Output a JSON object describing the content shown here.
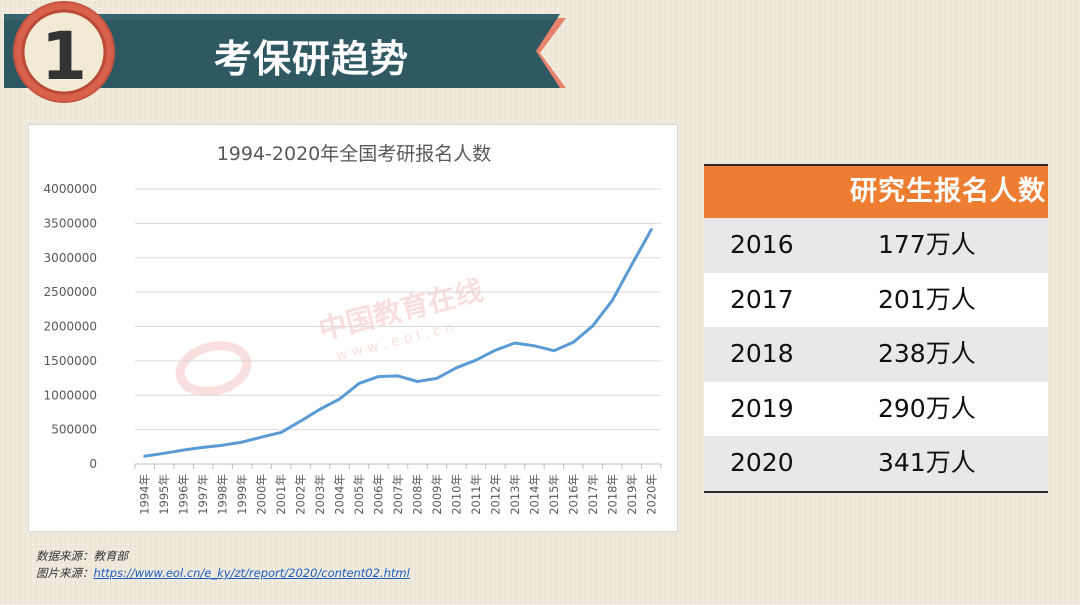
{
  "banner": {
    "number": "1",
    "title": "考保研趋势"
  },
  "chart_data": {
    "type": "line",
    "title": "1994-2020年全国考研报名人数",
    "categories": [
      "1994年",
      "1995年",
      "1996年",
      "1997年",
      "1998年",
      "1999年",
      "2000年",
      "2001年",
      "2002年",
      "2003年",
      "2004年",
      "2005年",
      "2006年",
      "2007年",
      "2008年",
      "2009年",
      "2010年",
      "2011年",
      "2012年",
      "2013年",
      "2014年",
      "2015年",
      "2016年",
      "2017年",
      "2018年",
      "2019年",
      "2020年"
    ],
    "series": [
      {
        "values": [
          113000,
          155000,
          204000,
          242000,
          274000,
          319000,
          392000,
          460000,
          624000,
          797000,
          945000,
          1172000,
          1272000,
          1282000,
          1200000,
          1246000,
          1400000,
          1510000,
          1656000,
          1760000,
          1720000,
          1648000,
          1770000,
          2010000,
          2380000,
          2900000,
          3410000
        ],
        "color": "#5b9bd5"
      }
    ],
    "ylim": [
      0,
      4000000
    ],
    "yticks": [
      "0",
      "500000",
      "1000000",
      "1500000",
      "2000000",
      "2500000",
      "3000000",
      "3500000",
      "4000000"
    ],
    "grid": true,
    "legend": "none"
  },
  "watermark": {
    "brand": "中国教育在线",
    "site": "w w w . e o l . c n"
  },
  "table": {
    "header": "研究生报名人数",
    "rows": [
      {
        "year": "2016",
        "value": "177万人"
      },
      {
        "year": "2017",
        "value": "201万人"
      },
      {
        "year": "2018",
        "value": "238万人"
      },
      {
        "year": "2019",
        "value": "290万人"
      },
      {
        "year": "2020",
        "value": "341万人"
      }
    ],
    "header_color": "#ed7d31"
  },
  "source": {
    "data_label": "数据来源：教育部",
    "image_label": "图片来源：",
    "image_url": "https://www.eol.cn/e_ky/zt/report/2020/content02.html"
  }
}
